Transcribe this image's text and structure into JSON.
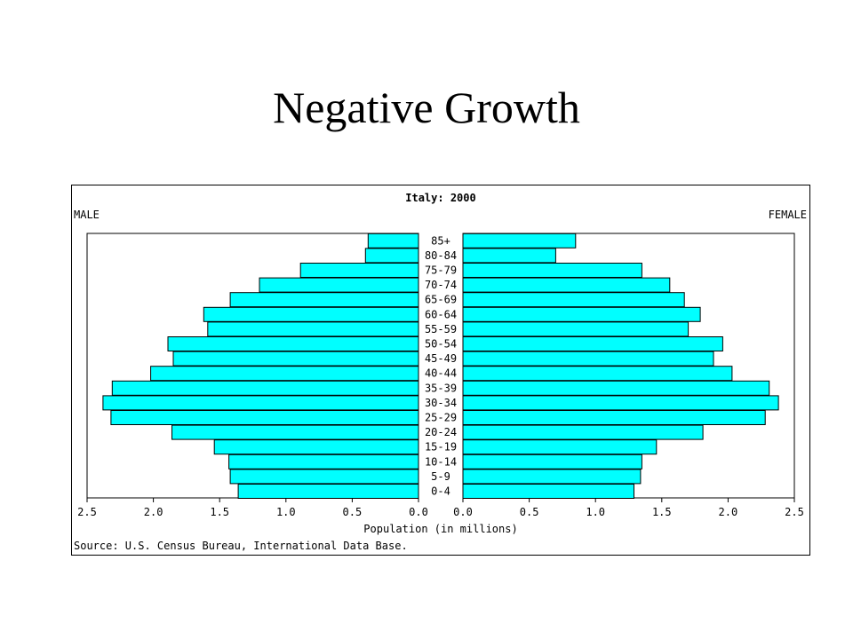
{
  "slide": {
    "title": "Negative Growth"
  },
  "chart_data": {
    "type": "bar",
    "title": "Italy: 2000",
    "left_label": "MALE",
    "right_label": "FEMALE",
    "xlabel": "Population (in millions)",
    "source": "Source: U.S. Census Bureau, International Data Base.",
    "xlim": [
      0,
      2.5
    ],
    "ticks": [
      "2.5",
      "2.0",
      "1.5",
      "1.0",
      "0.5",
      "0.0",
      "0.0",
      "0.5",
      "1.0",
      "1.5",
      "2.0",
      "2.5"
    ],
    "categories": [
      "85+",
      "80-84",
      "75-79",
      "70-74",
      "65-69",
      "60-64",
      "55-59",
      "50-54",
      "45-49",
      "40-44",
      "35-39",
      "30-34",
      "25-29",
      "20-24",
      "15-19",
      "10-14",
      "5-9",
      "0-4"
    ],
    "series": [
      {
        "name": "MALE",
        "values": [
          0.38,
          0.4,
          0.89,
          1.2,
          1.42,
          1.62,
          1.59,
          1.89,
          1.85,
          2.02,
          2.31,
          2.38,
          2.32,
          1.86,
          1.54,
          1.43,
          1.42,
          1.36
        ]
      },
      {
        "name": "FEMALE",
        "values": [
          0.85,
          0.7,
          1.35,
          1.56,
          1.67,
          1.79,
          1.7,
          1.96,
          1.89,
          2.03,
          2.31,
          2.38,
          2.28,
          1.81,
          1.46,
          1.35,
          1.34,
          1.29
        ]
      }
    ],
    "bar_color": "#00ffff",
    "grid": false
  }
}
